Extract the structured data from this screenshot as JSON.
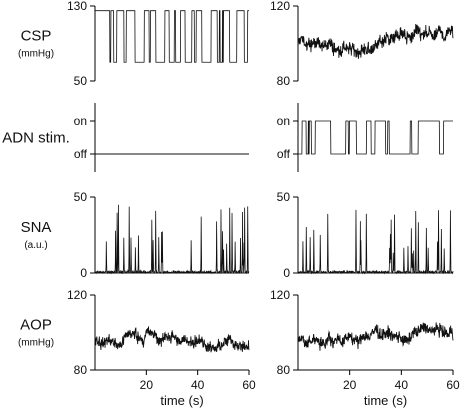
{
  "figure": {
    "rows": [
      {
        "key": "csp",
        "label": "CSP",
        "unit": "(mmHg)"
      },
      {
        "key": "adn",
        "label": "ADN stim.",
        "unit": ""
      },
      {
        "key": "sna",
        "label": "SNA",
        "unit": "(a.u.)"
      },
      {
        "key": "aop",
        "label": "AOP",
        "unit": "(mmHg)"
      }
    ],
    "xlabel": "time (s)"
  },
  "chart_data": [
    {
      "type": "line",
      "panel": "csp-left",
      "ylabel": "CSP (mmHg)",
      "ylim": [
        50,
        130
      ],
      "yticks": [
        "130",
        "50"
      ],
      "xlim": [
        0,
        60
      ],
      "description": "binary random switching between ~70 and ~125 mmHg"
    },
    {
      "type": "line",
      "panel": "csp-right",
      "ylabel": "CSP (mmHg)",
      "ylim": [
        80,
        120
      ],
      "yticks": [
        "120",
        "80"
      ],
      "xlim": [
        0,
        60
      ],
      "description": "noisy trace around ~100 mmHg"
    },
    {
      "type": "line",
      "panel": "adn-left",
      "ylabel": "ADN stim.",
      "ylim": [
        "off",
        "on"
      ],
      "yticks": [
        "on",
        "off"
      ],
      "xlim": [
        0,
        60
      ],
      "level": "off"
    },
    {
      "type": "line",
      "panel": "adn-right",
      "ylabel": "ADN stim.",
      "ylim": [
        "off",
        "on"
      ],
      "yticks": [
        "on",
        "off"
      ],
      "xlim": [
        0,
        60
      ],
      "description": "binary random on/off switching"
    },
    {
      "type": "line",
      "panel": "sna-left",
      "ylabel": "SNA (a.u.)",
      "ylim": [
        0,
        50
      ],
      "yticks": [
        "50",
        "0"
      ],
      "xlim": [
        0,
        60
      ],
      "description": "spiky bursts up to ~45"
    },
    {
      "type": "line",
      "panel": "sna-right",
      "ylabel": "SNA (a.u.)",
      "ylim": [
        0,
        50
      ],
      "yticks": [
        "50",
        "0"
      ],
      "xlim": [
        0,
        60
      ],
      "description": "spiky bursts up to ~40"
    },
    {
      "type": "line",
      "panel": "aop-left",
      "ylabel": "AOP (mmHg)",
      "ylim": [
        80,
        120
      ],
      "yticks": [
        "120",
        "80"
      ],
      "xlim": [
        0,
        60
      ],
      "xticks": [
        "20",
        "40",
        "60"
      ],
      "xlabel": "time (s)",
      "description": "noisy trace around ~98 mmHg"
    },
    {
      "type": "line",
      "panel": "aop-right",
      "ylabel": "AOP (mmHg)",
      "ylim": [
        80,
        120
      ],
      "yticks": [
        "120",
        "80"
      ],
      "xlim": [
        0,
        60
      ],
      "xticks": [
        "20",
        "40",
        "60"
      ],
      "xlabel": "time (s)",
      "description": "noisy trace around ~98 mmHg"
    }
  ]
}
